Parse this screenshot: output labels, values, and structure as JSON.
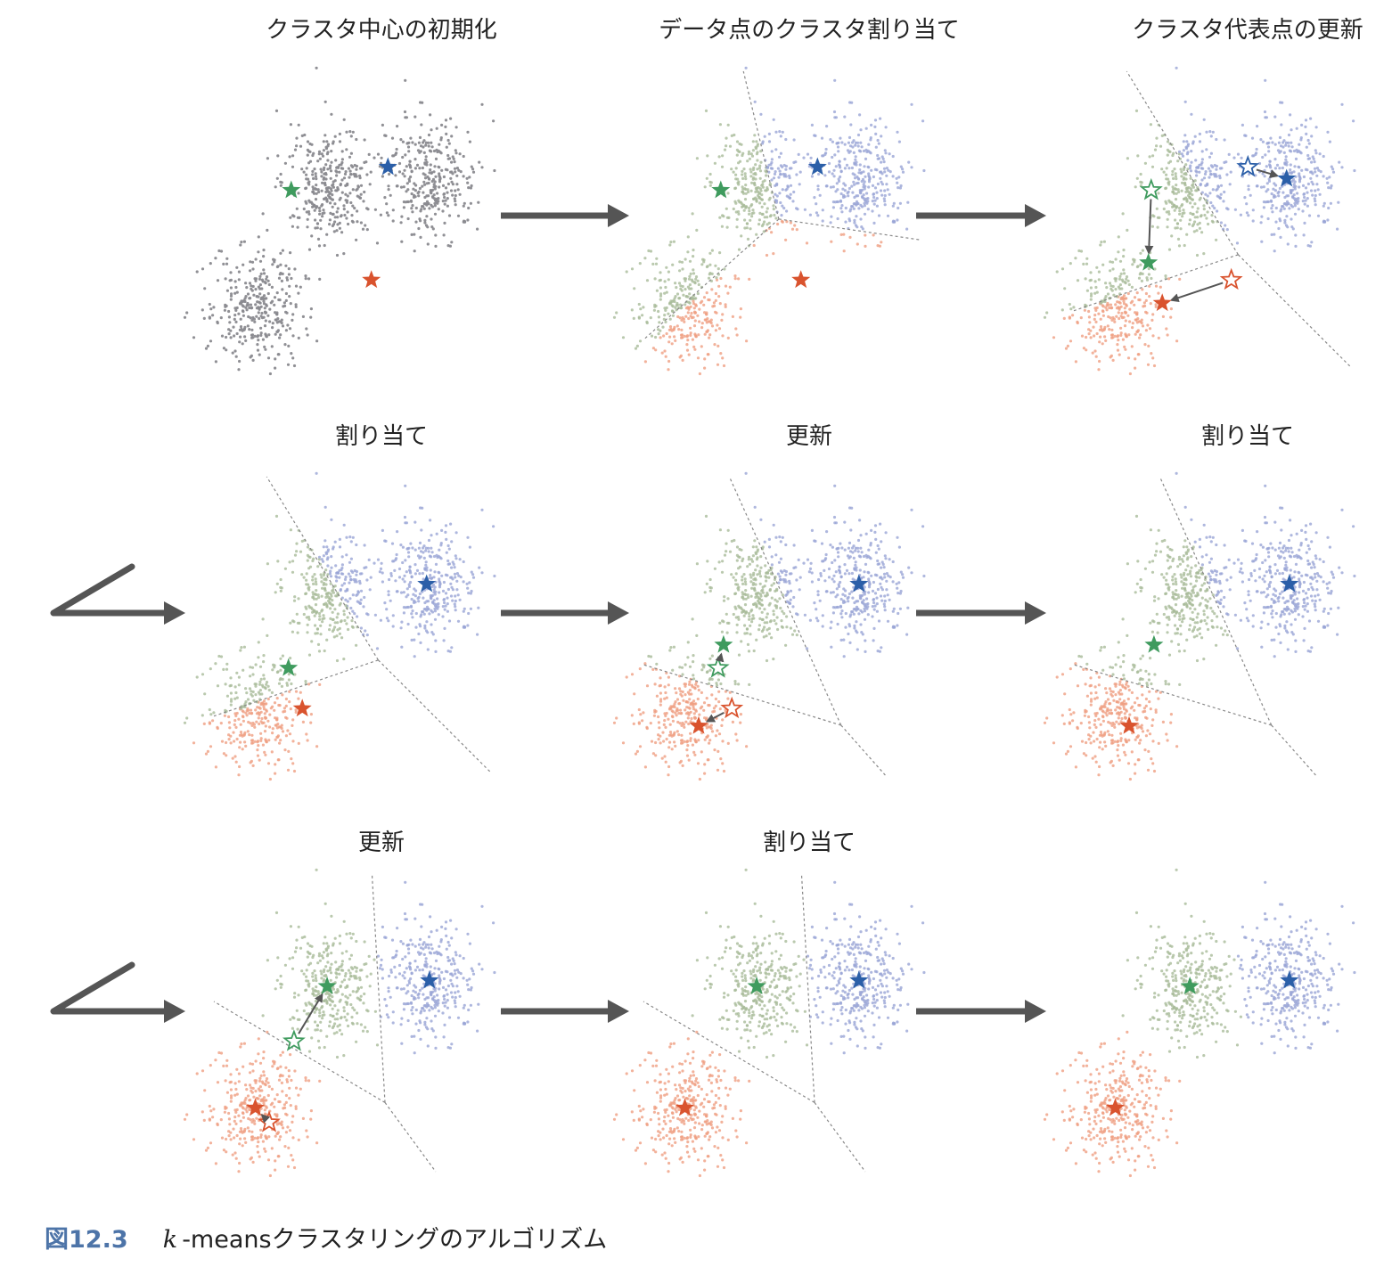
{
  "colors": {
    "blue": "#2b5fa8",
    "green": "#3f9b5e",
    "red": "#d9532e",
    "gray_point": "#8a8a8f",
    "blue_point": "#9aa5d6",
    "green_point": "#a9bb9a",
    "red_point": "#ef9f82",
    "arrow": "#555555",
    "caption_accent": "#4d74a8"
  },
  "panels": [
    {
      "title": "クラスタ中心の初期化",
      "assigned": false,
      "boundary": false,
      "centroids": {
        "blue": [
          0.63,
          0.3
        ],
        "green": [
          0.28,
          0.38
        ],
        "red": [
          0.57,
          0.69
        ]
      },
      "previous": null
    },
    {
      "title": "データ点のクラスタ割り当て",
      "assigned": true,
      "boundary": true,
      "centroids": {
        "blue": [
          0.63,
          0.3
        ],
        "green": [
          0.28,
          0.38
        ],
        "red": [
          0.57,
          0.69
        ]
      },
      "previous": null
    },
    {
      "title": "クラスタ代表点の更新",
      "assigned": true,
      "boundary": true,
      "centroids": {
        "blue": [
          0.77,
          0.34
        ],
        "green": [
          0.27,
          0.63
        ],
        "red": [
          0.32,
          0.77
        ]
      },
      "previous": {
        "blue": [
          0.63,
          0.3
        ],
        "green": [
          0.28,
          0.38
        ],
        "red": [
          0.57,
          0.69
        ]
      }
    },
    {
      "title": "割り当て",
      "assigned": true,
      "boundary": true,
      "centroids": {
        "blue": [
          0.77,
          0.34
        ],
        "green": [
          0.27,
          0.63
        ],
        "red": [
          0.32,
          0.77
        ]
      },
      "previous": null
    },
    {
      "title": "更新",
      "assigned": true,
      "boundary": true,
      "centroids": {
        "blue": [
          0.78,
          0.34
        ],
        "green": [
          0.29,
          0.55
        ],
        "red": [
          0.2,
          0.83
        ]
      },
      "previous": {
        "blue": [
          0.77,
          0.34
        ],
        "green": [
          0.27,
          0.63
        ],
        "red": [
          0.32,
          0.77
        ]
      }
    },
    {
      "title": "割り当て",
      "assigned": true,
      "boundary": true,
      "centroids": {
        "blue": [
          0.78,
          0.34
        ],
        "green": [
          0.29,
          0.55
        ],
        "red": [
          0.2,
          0.83
        ]
      },
      "previous": null
    },
    {
      "title": "更新",
      "assigned": true,
      "boundary": true,
      "centroids": {
        "blue": [
          0.78,
          0.34
        ],
        "green": [
          0.41,
          0.36
        ],
        "red": [
          0.15,
          0.78
        ]
      },
      "previous": {
        "blue": [
          0.78,
          0.34
        ],
        "green": [
          0.29,
          0.55
        ],
        "red": [
          0.2,
          0.83
        ]
      }
    },
    {
      "title": "割り当て",
      "assigned": true,
      "boundary": true,
      "centroids": {
        "blue": [
          0.78,
          0.34
        ],
        "green": [
          0.41,
          0.36
        ],
        "red": [
          0.15,
          0.78
        ]
      },
      "previous": null
    },
    {
      "title": "",
      "assigned": true,
      "boundary": false,
      "centroids": {
        "blue": [
          0.78,
          0.34
        ],
        "green": [
          0.42,
          0.36
        ],
        "red": [
          0.15,
          0.78
        ]
      },
      "previous": null
    }
  ],
  "caption": {
    "number": "図12.3",
    "k": "k",
    "text": "-meansクラスタリングのアルゴリズム"
  }
}
